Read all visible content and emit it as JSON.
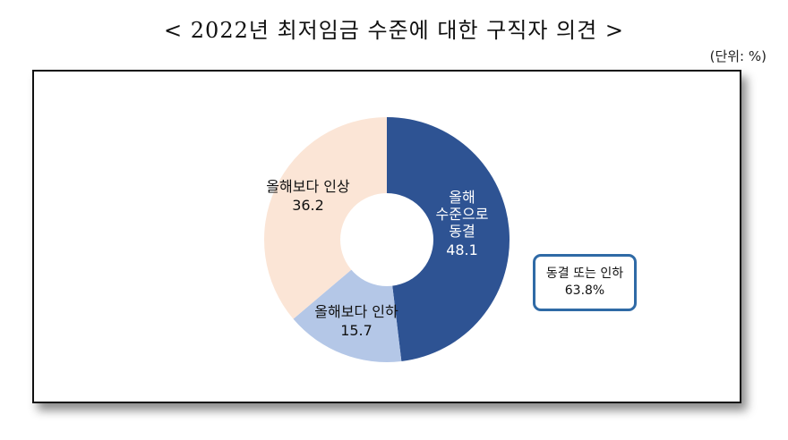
{
  "title": "< 2022년 최저임금 수준에 대한 구직자 의견 >",
  "unit": "(단위: %)",
  "callout": {
    "line1": "동결 또는 인하",
    "line2": "63.8%"
  },
  "chart_data": {
    "type": "pie",
    "subtype": "donut",
    "title": "< 2022년 최저임금 수준에 대한 구직자 의견 >",
    "unit": "%",
    "categories": [
      "올해 수준으로 동결",
      "올해보다 인하",
      "올해보다 인상"
    ],
    "values": [
      48.1,
      15.7,
      36.2
    ],
    "colors": [
      "#2e5393",
      "#b4c7e7",
      "#fbe5d6"
    ],
    "label_colors": [
      "#ffffff",
      "#111111",
      "#111111"
    ],
    "start_angle_deg": 0,
    "direction": "clockwise",
    "annotations": [
      {
        "text": "동결 또는 인하 63.8%",
        "sum_of": [
          "올해 수준으로 동결",
          "올해보다 인하"
        ]
      }
    ]
  },
  "labels": {
    "freeze": {
      "lines": [
        "올해",
        "수준으로",
        "동결"
      ],
      "value": "48.1"
    },
    "decrease": {
      "lines": [
        "올해보다 인하"
      ],
      "value": "15.7"
    },
    "increase": {
      "lines": [
        "올해보다 인상"
      ],
      "value": "36.2"
    }
  }
}
